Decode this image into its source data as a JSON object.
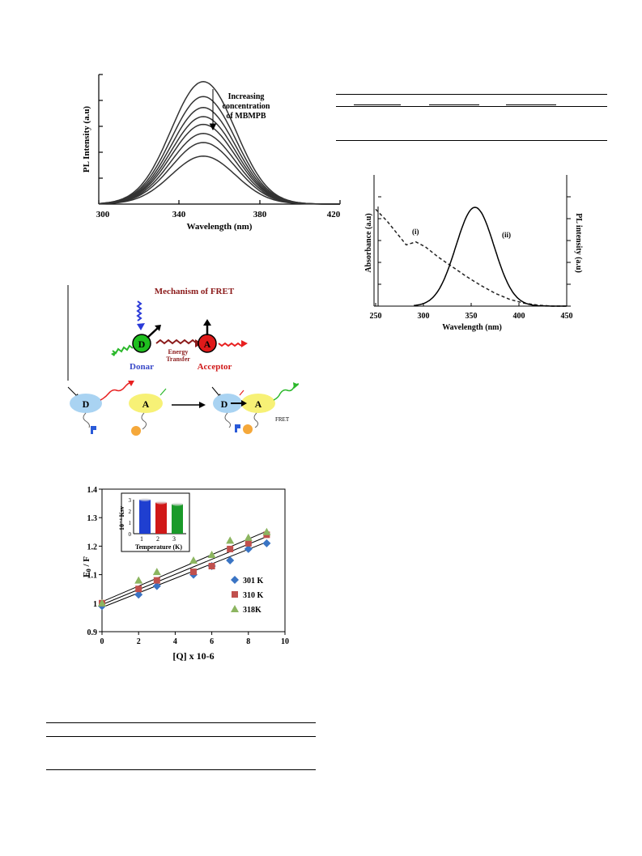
{
  "fig_pl": {
    "ylabel": "PL Intensity (a.u)",
    "xlabel": "Wavelength (nm)",
    "xticks": [
      "300",
      "340",
      "380",
      "420"
    ],
    "annotation": [
      "Increasing",
      "concentration",
      "of MBMPB"
    ]
  },
  "fig_fret": {
    "title": "Mechanism of FRET",
    "donor_letter": "D",
    "acceptor_letter": "A",
    "donor_label": "Donar",
    "acceptor_label": "Acceptor",
    "energy_transfer": [
      "Energy",
      "Transfer"
    ],
    "fret_label": "FRET"
  },
  "fig_overlap": {
    "ylabel_left": "Absorbance (a.u)",
    "ylabel_right": "PL intensity (a.u)",
    "xlabel": "Wavelength (nm)",
    "xticks": [
      "250",
      "300",
      "350",
      "400",
      "450"
    ],
    "curve_labels": [
      "(i)",
      "(ii)"
    ]
  },
  "chart_data": [
    {
      "type": "line",
      "title": "",
      "xlabel": "Wavelength (nm)",
      "ylabel": "PL Intensity (a.u)",
      "xlim": [
        300,
        420
      ],
      "ylim": [
        0,
        1
      ],
      "center": 352,
      "sigma": 16,
      "series": [
        {
          "peak": 0.945
        },
        {
          "peak": 0.83
        },
        {
          "peak": 0.745
        },
        {
          "peak": 0.675
        },
        {
          "peak": 0.615
        },
        {
          "peak": 0.545
        },
        {
          "peak": 0.475
        },
        {
          "peak": 0.37
        }
      ]
    },
    {
      "type": "line",
      "title": "",
      "xlabel": "Wavelength (nm)",
      "ylabel": "Absorbance (a.u)",
      "xlim": [
        250,
        450
      ],
      "series": [
        {
          "label": "(i)",
          "style": "dashed",
          "x": [
            250,
            262,
            272,
            282,
            292,
            302,
            315,
            330,
            345,
            360,
            375,
            390,
            405,
            420,
            435,
            450
          ],
          "y": [
            0.98,
            0.86,
            0.74,
            0.62,
            0.65,
            0.6,
            0.5,
            0.4,
            0.3,
            0.21,
            0.13,
            0.07,
            0.03,
            0.01,
            0.0,
            0.0
          ]
        },
        {
          "label": "(ii)",
          "style": "solid",
          "center": 354,
          "sigma": 20,
          "peak": 1.0
        }
      ]
    },
    {
      "type": "scatter",
      "title": "",
      "xlabel": "[Q] x 10-6",
      "ylabel": "F0 / F",
      "xlim": [
        0,
        10
      ],
      "ylim": [
        0.9,
        1.4
      ],
      "xticks": [
        "0",
        "2",
        "4",
        "6",
        "8",
        "10"
      ],
      "yticks": [
        "0.9",
        "1",
        "1.1",
        "1.2",
        "1.3",
        "1.4"
      ],
      "x": [
        0,
        2,
        3,
        5,
        6,
        7,
        8,
        9
      ],
      "series": [
        {
          "name": "301 K",
          "marker": "diamond",
          "color": "#3a74c4",
          "y": [
            0.99,
            1.03,
            1.06,
            1.1,
            1.13,
            1.15,
            1.19,
            1.21
          ],
          "fit": [
            0.985,
            0.0255
          ]
        },
        {
          "name": "310 K",
          "marker": "square",
          "color": "#c0504d",
          "y": [
            1.0,
            1.05,
            1.08,
            1.11,
            1.13,
            1.19,
            1.21,
            1.24
          ],
          "fit": [
            0.995,
            0.0265
          ]
        },
        {
          "name": "318K",
          "marker": "triangle",
          "color": "#8cb560",
          "y": [
            1.0,
            1.08,
            1.11,
            1.15,
            1.17,
            1.22,
            1.23,
            1.25
          ],
          "fit": [
            1.005,
            0.0275
          ]
        }
      ],
      "inset": {
        "type": "bar",
        "ylabel": "10⁻⁴ Ksv",
        "xlabel": "Temperature (K)",
        "categories": [
          "1",
          "2",
          "3"
        ],
        "values": [
          3.0,
          2.75,
          2.6
        ],
        "colors": [
          "#1f3fd0",
          "#d01818",
          "#1a9a2a"
        ],
        "ylim": [
          0,
          3
        ],
        "yticks": [
          "0",
          "1",
          "2",
          "3"
        ]
      }
    }
  ]
}
